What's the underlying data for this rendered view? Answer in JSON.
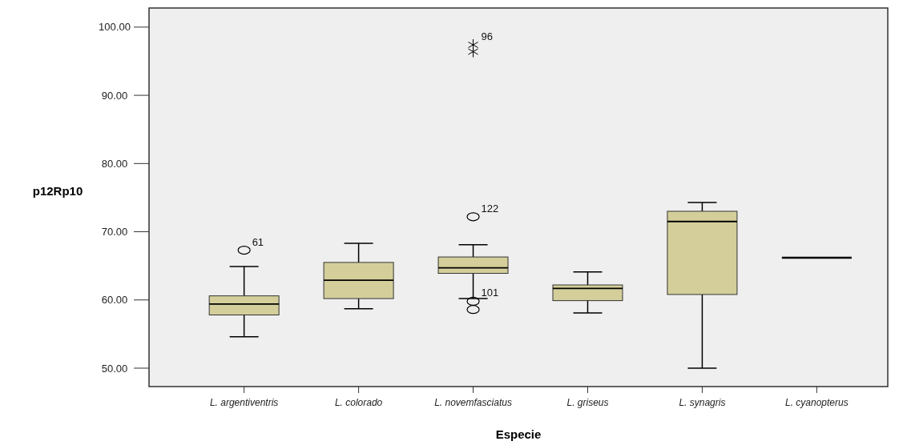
{
  "chart_data": {
    "type": "box",
    "xlabel": "Especie",
    "ylabel": "p12Rp10",
    "categories": [
      "L. argentiventris",
      "L. colorado",
      "L. novemfasciatus",
      "L. griseus",
      "L. synagris",
      "L. cyanopterus"
    ],
    "color": "#d4cf9a",
    "boxes": [
      {
        "low": 54.6,
        "q1": 57.8,
        "median": 59.4,
        "q3": 60.6,
        "high": 64.9,
        "outliers": [
          67.3
        ]
      },
      {
        "low": 58.7,
        "q1": 60.2,
        "median": 62.9,
        "q3": 65.5,
        "high": 68.3
      },
      {
        "low": 60.2,
        "q1": 63.9,
        "median": 64.7,
        "q3": 66.3,
        "high": 68.1,
        "outliers": [
          97.4,
          96.4,
          72.2,
          59.8,
          58.6
        ]
      },
      {
        "low": 58.1,
        "q1": 59.9,
        "median": 61.7,
        "q3": 62.2,
        "high": 64.1
      },
      {
        "low": 50.0,
        "q1": 60.8,
        "median": 71.5,
        "q3": 73.0,
        "high": 74.3
      },
      {
        "low": 66.2,
        "q1": 66.2,
        "median": 66.2,
        "q3": 66.2,
        "high": 66.2
      }
    ],
    "ylim": [
      47.3,
      102.8
    ],
    "yticks": [
      {
        "value": 50,
        "label": "50.00"
      },
      {
        "value": 60,
        "label": "60.00"
      },
      {
        "value": 70,
        "label": "70.00"
      },
      {
        "value": 80,
        "label": "80.00"
      },
      {
        "value": 90,
        "label": "90.00"
      },
      {
        "value": 100,
        "label": "100.00"
      }
    ],
    "grid": false,
    "annotations": [
      "61",
      "96",
      "122",
      "101"
    ]
  }
}
